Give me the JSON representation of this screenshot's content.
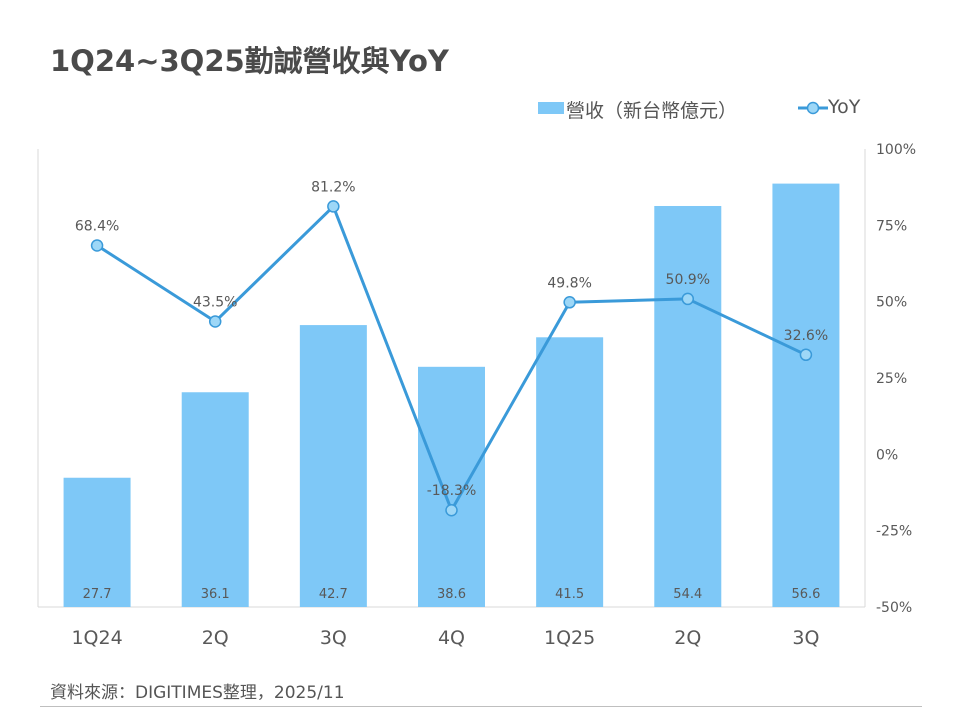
{
  "title": "1Q24~3Q25勤誠營收與YoY",
  "source": "資料來源：DIGITIMES整理，2025/11",
  "colors": {
    "bar": "#7ec8f7",
    "line": "#3a9ad9",
    "marker_fill": "#9dd7f7"
  },
  "chart_data": {
    "type": "bar+line",
    "categories": [
      "1Q24",
      "2Q",
      "3Q",
      "4Q",
      "1Q25",
      "2Q",
      "3Q"
    ],
    "series": [
      {
        "name": "營收（新台幣億元）",
        "kind": "bar",
        "axis": "left",
        "values": [
          27.7,
          36.1,
          42.7,
          38.6,
          41.5,
          54.4,
          56.6
        ],
        "labels": [
          "27.7",
          "36.1",
          "42.7",
          "38.6",
          "41.5",
          "54.4",
          "56.6"
        ]
      },
      {
        "name": "YoY",
        "kind": "line",
        "axis": "right",
        "values": [
          68.4,
          43.5,
          81.2,
          -18.3,
          49.8,
          50.9,
          32.6
        ],
        "labels": [
          "68.4%",
          "43.5%",
          "81.2%",
          "-18.3%",
          "49.8%",
          "50.9%",
          "32.6%"
        ]
      }
    ],
    "y_left_range": [
      15,
      60
    ],
    "y_right_range": [
      -50,
      100
    ],
    "y_right_ticks": [
      "100%",
      "75%",
      "50%",
      "25%",
      "0%",
      "-25%",
      "-50%"
    ],
    "y_right_tick_values": [
      100,
      75,
      50,
      25,
      0,
      -25,
      -50
    ],
    "legend_position": "top-right",
    "grid": false
  }
}
